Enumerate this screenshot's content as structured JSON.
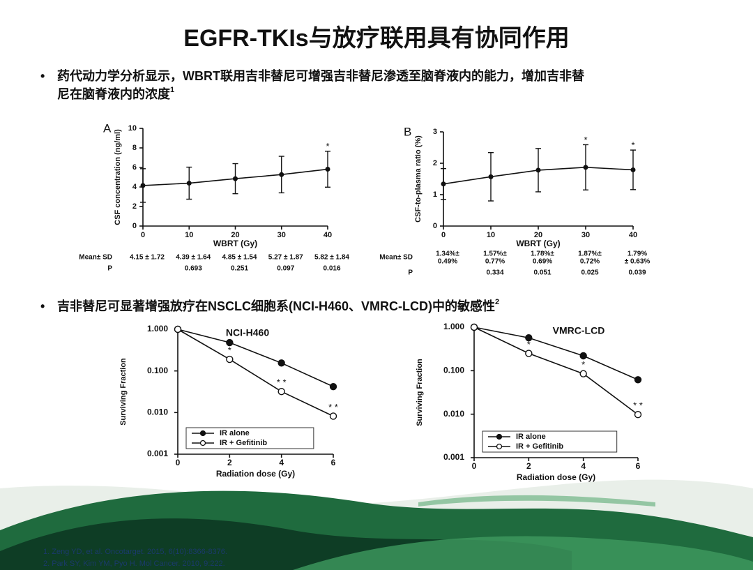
{
  "title": "EGFR-TKIs与放疗联用具有协同作用",
  "bullets": [
    {
      "lines": [
        "药代动力学分析显示，WBRT联用吉非替尼可增强吉非替尼渗透至脑脊液内的能力，增加吉非替",
        "尼在脑脊液内的浓度"
      ],
      "ref": "1"
    },
    {
      "lines": [
        "吉非替尼可显著增强放疗在NSCLC细胞系(NCI-H460、VMRC-LCD)中的敏感性"
      ],
      "ref": "2"
    }
  ],
  "references": [
    "1. Zeng YD, et al. Oncotarget. 2015, 6(10):8366-8376.",
    "2. Park SY, Kim YM, Pyo H. Mol Cancer. 2010, 9:222."
  ],
  "chart_data": [
    {
      "type": "line",
      "panel_label": "A",
      "x_label": "WBRT (Gy)",
      "y_label": "CSF concentration (ng/ml)",
      "x": [
        0,
        10,
        20,
        30,
        40
      ],
      "values": [
        4.15,
        4.39,
        4.85,
        5.27,
        5.82
      ],
      "errors": [
        1.72,
        1.64,
        1.54,
        1.87,
        1.84
      ],
      "point_labels": [
        null,
        null,
        null,
        null,
        "*"
      ],
      "color": "#111111",
      "xlim": [
        0,
        40
      ],
      "xticks": [
        0,
        10,
        20,
        30,
        40
      ],
      "ylim": [
        0,
        10
      ],
      "yticks": [
        0,
        2,
        4,
        6,
        8,
        10
      ],
      "stats": {
        "row_labels": [
          "Mean± SD",
          "P"
        ],
        "mean_sd": [
          [
            "4.15 ± 1.72"
          ],
          [
            "4.39 ± 1.64"
          ],
          [
            "4.85 ± 1.54"
          ],
          [
            "5.27 ± 1.87"
          ],
          [
            "5.82 ± 1.84"
          ]
        ],
        "p": [
          null,
          0.693,
          0.251,
          0.097,
          0.016
        ]
      }
    },
    {
      "type": "line",
      "panel_label": "B",
      "x_label": "WBRT (Gy)",
      "y_label": "CSF-to-plasma ratio (%)",
      "x": [
        0,
        10,
        20,
        30,
        40
      ],
      "values": [
        1.34,
        1.57,
        1.78,
        1.87,
        1.79
      ],
      "errors": [
        0.49,
        0.77,
        0.69,
        0.72,
        0.63
      ],
      "point_labels": [
        null,
        null,
        null,
        "*",
        "*"
      ],
      "color": "#111111",
      "xlim": [
        0,
        40
      ],
      "xticks": [
        0,
        10,
        20,
        30,
        40
      ],
      "ylim": [
        0,
        3
      ],
      "yticks": [
        0,
        1,
        2,
        3
      ],
      "stats": {
        "row_labels": [
          "Mean± SD",
          "P"
        ],
        "mean_sd": [
          [
            "1.34%±",
            "0.49%"
          ],
          [
            "1.57%±",
            "0.77%"
          ],
          [
            "1.78%±",
            "0.69%"
          ],
          [
            "1.87%±",
            "0.72%"
          ],
          [
            "1.79%",
            "± 0.63%"
          ]
        ],
        "p": [
          null,
          0.334,
          0.051,
          0.025,
          0.039
        ]
      }
    },
    {
      "type": "line",
      "title": "NCI-H460",
      "x_label": "Radiation dose (Gy)",
      "y_label": "Surviving Fraction",
      "log_scale": true,
      "legend": "lower left",
      "x": [
        0,
        2,
        4,
        6
      ],
      "series": [
        {
          "name": "IR alone",
          "color": "#111111",
          "marker": "filled",
          "values": [
            1,
            0.48,
            0.155,
            0.042
          ]
        },
        {
          "name": "IR + Gefitinib",
          "color": "#111111",
          "marker": "open",
          "values": [
            1,
            0.19,
            0.032,
            0.0082
          ],
          "point_labels": [
            null,
            "*",
            "* *",
            "* *"
          ]
        }
      ],
      "xlim": [
        0,
        6
      ],
      "xticks": [
        0,
        2,
        4,
        6
      ],
      "ylim": [
        0.001,
        1
      ],
      "yticks": [
        {
          "value": 1,
          "label": "1.000"
        },
        {
          "value": 0.1,
          "label": "0.100"
        },
        {
          "value": 0.01,
          "label": "0.010"
        },
        {
          "value": 0.001,
          "label": "0.001"
        }
      ]
    },
    {
      "type": "line",
      "title": "VMRC-LCD",
      "x_label": "Radiation dose (Gy)",
      "y_label": "Surviving Fraction",
      "log_scale": true,
      "legend": "lower left",
      "x": [
        0,
        2,
        4,
        6
      ],
      "series": [
        {
          "name": "IR alone",
          "color": "#111111",
          "marker": "filled",
          "values": [
            1,
            0.57,
            0.22,
            0.062
          ]
        },
        {
          "name": "IR + Gefitinib",
          "color": "#111111",
          "marker": "open",
          "values": [
            1,
            0.25,
            0.085,
            0.0098
          ],
          "point_labels": [
            null,
            "*",
            "*",
            "* *"
          ]
        }
      ],
      "xlim": [
        0,
        6
      ],
      "xticks": [
        0,
        2,
        4,
        6
      ],
      "ylim": [
        0.001,
        1
      ],
      "yticks": [
        {
          "value": 1,
          "label": "1.000"
        },
        {
          "value": 0.1,
          "label": "0.100"
        },
        {
          "value": 0.01,
          "label": "0.010"
        },
        {
          "value": 0.001,
          "label": "0.001"
        }
      ]
    }
  ]
}
